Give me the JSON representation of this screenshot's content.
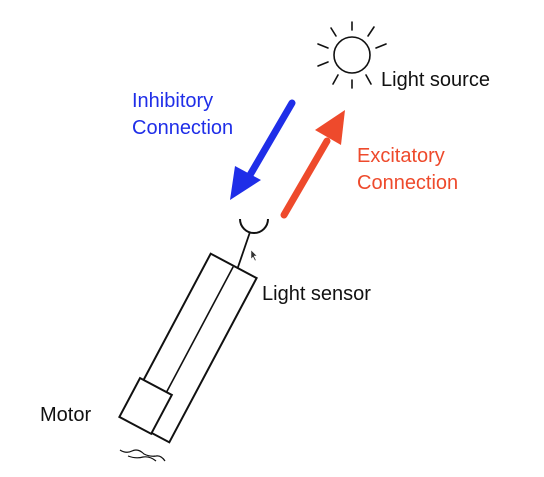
{
  "labels": {
    "light_source": "Light source",
    "inhibitory_line1": "Inhibitory",
    "inhibitory_line2": "Connection",
    "excitatory_line1": "Excitatory",
    "excitatory_line2": "Connection",
    "light_sensor": "Light sensor",
    "motor": "Motor"
  },
  "colors": {
    "inhibitory": "#1f2ee8",
    "excitatory": "#ee4a2c",
    "ink": "#111111"
  },
  "icons": {
    "sun": "sun-icon",
    "cursor": "mouse-pointer-icon"
  }
}
